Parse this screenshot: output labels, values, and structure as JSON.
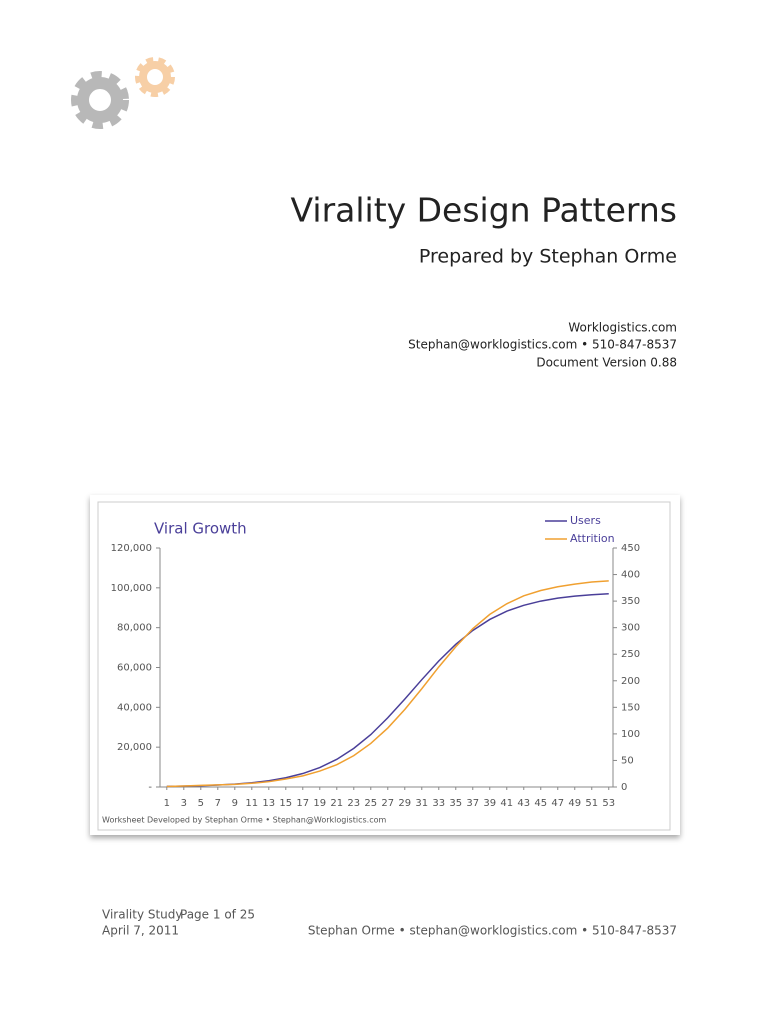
{
  "header": {
    "title": "Virality Design Patterns",
    "subtitle": "Prepared by Stephan Orme",
    "contact": [
      "Worklogistics.com",
      "Stephan@worklogistics.com • 510-847-8537",
      "Document Version 0.88"
    ]
  },
  "chart_data": {
    "type": "line",
    "title": "Viral Growth",
    "x": [
      1,
      3,
      5,
      7,
      9,
      11,
      13,
      15,
      17,
      19,
      21,
      23,
      25,
      27,
      29,
      31,
      33,
      35,
      37,
      39,
      41,
      43,
      45,
      47,
      49,
      51,
      53
    ],
    "series": [
      {
        "name": "Users",
        "color": "#4a3f99",
        "values": [
          296,
          442,
          658,
          976,
          1449,
          2143,
          3165,
          4645,
          6760,
          9770,
          13900,
          19400,
          26300,
          34750,
          44140,
          53880,
          63270,
          71640,
          78590,
          84120,
          88300,
          91220,
          93350,
          94830,
          95850,
          96550,
          97000
        ]
      },
      {
        "name": "Attrition",
        "color": "#f0a030",
        "axis": "y2",
        "values": [
          1,
          2,
          3,
          4,
          5,
          7,
          10,
          15,
          21,
          30,
          42,
          59,
          82,
          111,
          146,
          185,
          226,
          264,
          298,
          325,
          345,
          360,
          370,
          377,
          382,
          386,
          388
        ]
      }
    ],
    "xlim": [
      0.2,
      53.5
    ],
    "xticks": [
      1,
      3,
      5,
      7,
      9,
      11,
      13,
      15,
      17,
      19,
      21,
      23,
      25,
      27,
      29,
      31,
      33,
      35,
      37,
      39,
      41,
      43,
      45,
      47,
      49,
      51,
      53
    ],
    "ylim": [
      0,
      120000
    ],
    "yticks": [
      {
        "value": 0,
        "label": "-"
      },
      {
        "value": 20000,
        "label": "20,000"
      },
      {
        "value": 40000,
        "label": "40,000"
      },
      {
        "value": 60000,
        "label": "60,000"
      },
      {
        "value": 80000,
        "label": "80,000"
      },
      {
        "value": 100000,
        "label": "100,000"
      },
      {
        "value": 120000,
        "label": "120,000"
      }
    ],
    "y2lim": [
      0,
      450
    ],
    "y2ticks": [
      0,
      50,
      100,
      150,
      200,
      250,
      300,
      350,
      400,
      450
    ],
    "grid": false,
    "legend": "upper right",
    "footnote": "Worksheet Developed by Stephan Orme  • Stephan@Worklogistics.com"
  },
  "footer": {
    "study": "Virality Study",
    "page": "Page 1 of 25",
    "date": "April 7, 2011",
    "right": "Stephan Orme • stephan@worklogistics.com • 510-847-8537"
  }
}
